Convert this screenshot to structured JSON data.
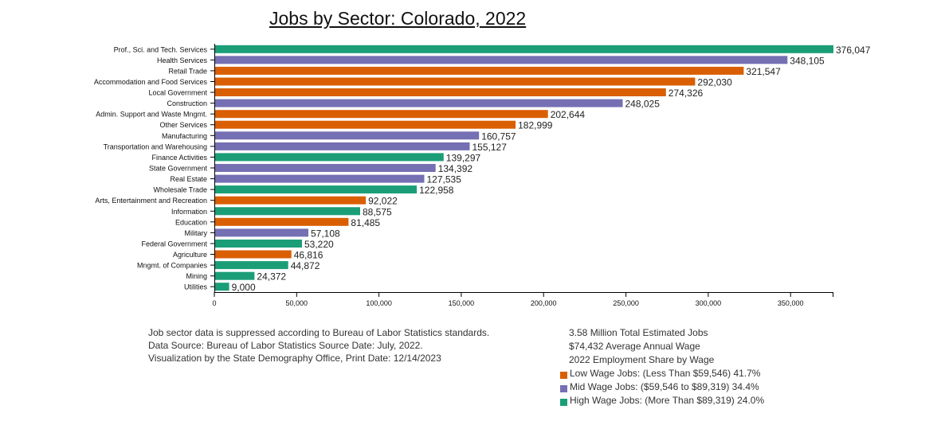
{
  "chart_data": {
    "type": "bar",
    "orientation": "horizontal",
    "title": "Jobs by Sector: Colorado, 2022",
    "xlim": [
      0,
      376047
    ],
    "xticks": [
      0,
      50000,
      100000,
      150000,
      200000,
      250000,
      300000,
      350000
    ],
    "xtick_labels": [
      "0",
      "50,000",
      "100,000",
      "150,000",
      "200,000",
      "250,000",
      "300,000",
      "350,000"
    ],
    "colors": {
      "low": "#d95f02",
      "mid": "#7570b3",
      "high": "#1b9e77"
    },
    "bars": [
      {
        "category": "Prof., Sci. and Tech. Services",
        "value": 376047,
        "label": "376,047",
        "wage": "high"
      },
      {
        "category": "Health Services",
        "value": 348105,
        "label": "348,105",
        "wage": "mid"
      },
      {
        "category": "Retail Trade",
        "value": 321547,
        "label": "321,547",
        "wage": "low"
      },
      {
        "category": "Accommodation and Food Services",
        "value": 292030,
        "label": "292,030",
        "wage": "low"
      },
      {
        "category": "Local Government",
        "value": 274326,
        "label": "274,326",
        "wage": "low"
      },
      {
        "category": "Construction",
        "value": 248025,
        "label": "248,025",
        "wage": "mid"
      },
      {
        "category": "Admin. Support and Waste Mngmt.",
        "value": 202644,
        "label": "202,644",
        "wage": "low"
      },
      {
        "category": "Other Services",
        "value": 182999,
        "label": "182,999",
        "wage": "low"
      },
      {
        "category": "Manufacturing",
        "value": 160757,
        "label": "160,757",
        "wage": "mid"
      },
      {
        "category": "Transportation and Warehousing",
        "value": 155127,
        "label": "155,127",
        "wage": "mid"
      },
      {
        "category": "Finance Activities",
        "value": 139297,
        "label": "139,297",
        "wage": "high"
      },
      {
        "category": "State Government",
        "value": 134392,
        "label": "134,392",
        "wage": "mid"
      },
      {
        "category": "Real Estate",
        "value": 127535,
        "label": "127,535",
        "wage": "mid"
      },
      {
        "category": "Wholesale Trade",
        "value": 122958,
        "label": "122,958",
        "wage": "high"
      },
      {
        "category": "Arts, Entertainment and Recreation",
        "value": 92022,
        "label": "92,022",
        "wage": "low"
      },
      {
        "category": "Information",
        "value": 88575,
        "label": "88,575",
        "wage": "high"
      },
      {
        "category": "Education",
        "value": 81485,
        "label": "81,485",
        "wage": "low"
      },
      {
        "category": "Military",
        "value": 57108,
        "label": "57,108",
        "wage": "mid"
      },
      {
        "category": "Federal Government",
        "value": 53220,
        "label": "53,220",
        "wage": "high"
      },
      {
        "category": "Agriculture",
        "value": 46816,
        "label": "46,816",
        "wage": "low"
      },
      {
        "category": "Mngmt. of Companies",
        "value": 44872,
        "label": "44,872",
        "wage": "high"
      },
      {
        "category": "Mining",
        "value": 24372,
        "label": "24,372",
        "wage": "high"
      },
      {
        "category": "Utilities",
        "value": 9000,
        "label": "9,000",
        "wage": "high"
      }
    ]
  },
  "notes": {
    "line1": "Job sector data is suppressed according to Bureau of Labor Statistics standards.",
    "line2": "Data Source: Bureau of Labor Statistics Source Date: July, 2022.",
    "line3": "Visualization by the State Demography Office, Print Date: 12/14/2023"
  },
  "summary": {
    "total_jobs": "3.58 Million Total Estimated Jobs",
    "avg_wage": "$74,432 Average Annual Wage",
    "share_heading": "2022 Employment Share by Wage",
    "legend_low": "Low Wage Jobs: (Less Than $59,546) 41.7%",
    "legend_mid": "Mid Wage Jobs: ($59,546 to $89,319) 34.4%",
    "legend_high": "High Wage Jobs: (More Than $89,319) 24.0%"
  }
}
